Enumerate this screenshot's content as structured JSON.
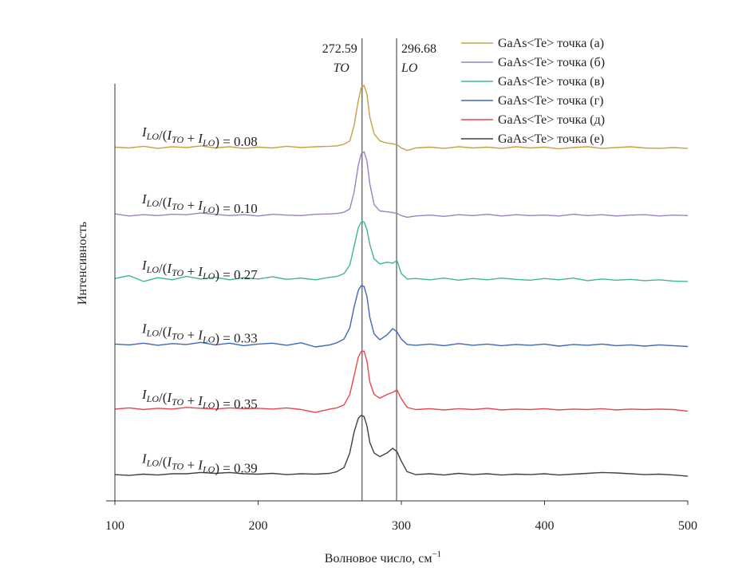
{
  "chart_data": {
    "type": "line",
    "title": "",
    "xlabel": "Волновое число, см",
    "xlabel_superscript": "−1",
    "ylabel": "Интенсивность",
    "xlim": [
      100,
      500
    ],
    "ylim": [
      0,
      100
    ],
    "xticks": [
      "100",
      "200",
      "300",
      "400",
      "500"
    ],
    "grid": false,
    "legend_position": "top-right",
    "vlines": [
      {
        "x": 272.59,
        "value_label": "272.59",
        "mode": "TO",
        "color": "#555555"
      },
      {
        "x": 296.68,
        "value_label": "296.68",
        "mode": "LO",
        "color": "#555555"
      }
    ],
    "ratio_formula": {
      "I": "I",
      "lo": "LO",
      "to": "TO",
      "slash": "/(",
      "plus": " + ",
      "close": ") = "
    },
    "x": [
      100,
      110,
      120,
      130,
      140,
      150,
      160,
      170,
      180,
      190,
      200,
      210,
      220,
      230,
      240,
      250,
      255,
      260,
      264,
      267,
      270,
      272,
      274,
      276,
      278,
      281,
      285,
      290,
      294,
      297,
      300,
      304,
      310,
      320,
      330,
      340,
      350,
      360,
      370,
      380,
      390,
      400,
      410,
      420,
      430,
      440,
      450,
      460,
      470,
      480,
      490,
      500
    ],
    "series": [
      {
        "name": "GaAs<Te> точка (а)",
        "color": "#c9a043",
        "ratio": "0.08",
        "values": [
          84.8,
          84.6,
          85.0,
          84.5,
          84.9,
          84.7,
          85.1,
          84.6,
          84.9,
          84.5,
          84.8,
          84.6,
          85.0,
          84.7,
          84.9,
          85.0,
          85.1,
          85.5,
          86.3,
          90.0,
          96.0,
          99.0,
          99.6,
          97.5,
          92.0,
          88.0,
          86.3,
          85.8,
          85.6,
          85.4,
          84.6,
          84.0,
          84.6,
          84.8,
          84.5,
          84.9,
          84.6,
          84.8,
          84.5,
          84.9,
          84.6,
          84.8,
          84.4,
          84.7,
          84.9,
          84.5,
          84.7,
          84.9,
          84.6,
          84.5,
          84.7,
          84.5
        ]
      },
      {
        "name": "GaAs<Te> точка (б)",
        "color": "#9b80c2",
        "ratio": "0.10",
        "values": [
          68.8,
          68.3,
          68.6,
          68.4,
          68.7,
          68.6,
          69.0,
          68.7,
          68.4,
          68.6,
          68.3,
          68.7,
          68.5,
          68.4,
          68.7,
          68.8,
          68.9,
          69.2,
          70.0,
          74.0,
          80.5,
          83.2,
          83.7,
          81.5,
          76.0,
          71.0,
          69.5,
          69.3,
          69.1,
          68.9,
          68.4,
          68.0,
          68.3,
          68.5,
          68.2,
          68.6,
          68.4,
          68.7,
          68.3,
          68.6,
          68.4,
          68.5,
          68.3,
          68.7,
          68.4,
          68.6,
          68.3,
          68.5,
          68.6,
          68.3,
          68.5,
          68.4
        ]
      },
      {
        "name": "GaAs<Te> точка (в)",
        "color": "#3db88c",
        "ratio": "0.27",
        "values": [
          53.3,
          54.0,
          52.6,
          53.5,
          53.0,
          53.8,
          53.2,
          53.6,
          53.0,
          53.5,
          53.2,
          53.7,
          53.1,
          53.4,
          53.0,
          53.6,
          53.8,
          54.5,
          56.5,
          61.0,
          65.5,
          66.8,
          66.9,
          65.0,
          61.5,
          58.0,
          56.8,
          57.2,
          57.0,
          57.6,
          54.5,
          53.2,
          53.3,
          53.0,
          53.4,
          52.9,
          53.3,
          53.0,
          53.4,
          53.1,
          52.9,
          53.3,
          53.0,
          53.4,
          52.8,
          53.2,
          52.9,
          53.1,
          52.8,
          53.0,
          52.7,
          52.6
        ]
      },
      {
        "name": "GaAs<Te> точка (г)",
        "color": "#3d68b8",
        "ratio": "0.33",
        "values": [
          37.6,
          37.4,
          37.8,
          37.3,
          37.7,
          37.5,
          38.0,
          37.4,
          37.8,
          37.2,
          37.6,
          37.8,
          37.3,
          37.9,
          36.9,
          37.4,
          37.9,
          38.8,
          41.5,
          46.5,
          50.5,
          51.6,
          51.4,
          49.0,
          44.0,
          40.0,
          38.6,
          39.8,
          41.3,
          40.5,
          38.8,
          37.5,
          37.3,
          37.6,
          37.2,
          37.7,
          37.3,
          37.6,
          37.2,
          37.5,
          37.3,
          37.6,
          37.1,
          37.5,
          37.3,
          37.6,
          37.2,
          37.4,
          37.1,
          37.4,
          37.2,
          37.0
        ]
      },
      {
        "name": "GaAs<Te> точка (д)",
        "color": "#e8474f",
        "ratio": "0.35",
        "values": [
          22.0,
          22.3,
          21.9,
          22.2,
          22.0,
          22.4,
          22.2,
          22.0,
          22.3,
          22.1,
          22.2,
          22.0,
          22.3,
          21.9,
          21.2,
          22.0,
          22.3,
          23.0,
          25.5,
          30.0,
          34.5,
          35.8,
          35.9,
          33.5,
          28.5,
          25.5,
          24.6,
          25.5,
          26.0,
          26.6,
          24.5,
          22.4,
          21.9,
          22.1,
          21.8,
          22.1,
          21.9,
          22.2,
          21.8,
          22.0,
          21.9,
          22.1,
          21.8,
          22.0,
          21.9,
          22.1,
          21.8,
          22.0,
          21.9,
          22.0,
          21.9,
          21.5
        ]
      },
      {
        "name": "GaAs<Te> точка (е)",
        "color": "#404040",
        "ratio": "0.39",
        "values": [
          6.3,
          6.1,
          6.4,
          6.2,
          6.5,
          6.5,
          6.8,
          6.6,
          6.8,
          6.5,
          6.4,
          6.6,
          6.3,
          6.5,
          6.4,
          6.6,
          7.0,
          8.0,
          11.5,
          16.5,
          19.8,
          20.5,
          20.2,
          18.0,
          14.0,
          11.5,
          10.6,
          11.5,
          12.6,
          11.8,
          9.5,
          7.0,
          6.3,
          6.5,
          6.2,
          6.6,
          6.3,
          6.5,
          6.2,
          6.4,
          6.3,
          6.5,
          6.2,
          6.4,
          6.6,
          6.8,
          6.7,
          6.5,
          6.3,
          6.4,
          6.2,
          5.9
        ]
      }
    ]
  }
}
